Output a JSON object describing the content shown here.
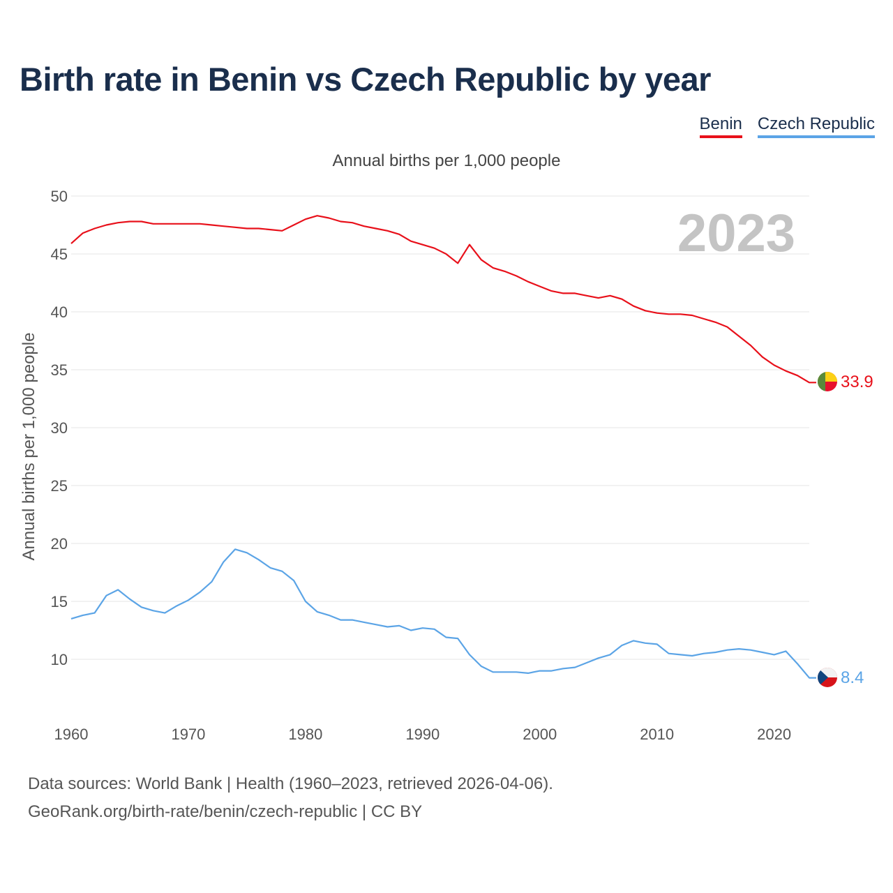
{
  "title": "Birth rate in Benin vs Czech Republic by year",
  "legend": [
    {
      "label": "Benin",
      "color": "#e8101a"
    },
    {
      "label": "Czech Republic",
      "color": "#5ba4e6"
    }
  ],
  "subtitle": "Annual births per 1,000 people",
  "year_watermark": "2023",
  "footer": {
    "line1": "Data sources: World Bank | Health (1960–2023, retrieved 2026-04-06).",
    "line2": "GeoRank.org/birth-rate/benin/czech-republic | CC BY"
  },
  "chart_data": {
    "type": "line",
    "title": "Birth rate in Benin vs Czech Republic by year",
    "ylabel": "Annual births per 1,000 people",
    "xlabel": "",
    "xlim": [
      1960,
      2023
    ],
    "ylim": [
      7,
      50
    ],
    "yticks": [
      10,
      15,
      20,
      25,
      30,
      35,
      40,
      45,
      50
    ],
    "xticks": [
      1960,
      1970,
      1980,
      1990,
      2000,
      2010,
      2020
    ],
    "grid": true,
    "legend_position": "top-right",
    "series": [
      {
        "name": "Benin",
        "color": "#e8101a",
        "end_label": "33.9",
        "x": [
          1960,
          1961,
          1962,
          1963,
          1964,
          1965,
          1966,
          1967,
          1968,
          1969,
          1970,
          1971,
          1972,
          1973,
          1974,
          1975,
          1976,
          1977,
          1978,
          1979,
          1980,
          1981,
          1982,
          1983,
          1984,
          1985,
          1986,
          1987,
          1988,
          1989,
          1990,
          1991,
          1992,
          1993,
          1994,
          1995,
          1996,
          1997,
          1998,
          1999,
          2000,
          2001,
          2002,
          2003,
          2004,
          2005,
          2006,
          2007,
          2008,
          2009,
          2010,
          2011,
          2012,
          2013,
          2014,
          2015,
          2016,
          2017,
          2018,
          2019,
          2020,
          2021,
          2022,
          2023
        ],
        "values": [
          45.9,
          46.8,
          47.2,
          47.5,
          47.7,
          47.8,
          47.8,
          47.6,
          47.6,
          47.6,
          47.6,
          47.6,
          47.5,
          47.4,
          47.3,
          47.2,
          47.2,
          47.1,
          47.0,
          47.5,
          48.0,
          48.3,
          48.1,
          47.8,
          47.7,
          47.4,
          47.2,
          47.0,
          46.7,
          46.1,
          45.8,
          45.5,
          45.0,
          44.2,
          45.8,
          44.5,
          43.8,
          43.5,
          43.1,
          42.6,
          42.2,
          41.8,
          41.6,
          41.6,
          41.4,
          41.2,
          41.4,
          41.1,
          40.5,
          40.1,
          39.9,
          39.8,
          39.8,
          39.7,
          39.4,
          39.1,
          38.7,
          37.9,
          37.1,
          36.1,
          35.4,
          34.9,
          34.5,
          33.9
        ]
      },
      {
        "name": "Czech Republic",
        "color": "#5ba4e6",
        "end_label": "8.4",
        "x": [
          1960,
          1961,
          1962,
          1963,
          1964,
          1965,
          1966,
          1967,
          1968,
          1969,
          1970,
          1971,
          1972,
          1973,
          1974,
          1975,
          1976,
          1977,
          1978,
          1979,
          1980,
          1981,
          1982,
          1983,
          1984,
          1985,
          1986,
          1987,
          1988,
          1989,
          1990,
          1991,
          1992,
          1993,
          1994,
          1995,
          1996,
          1997,
          1998,
          1999,
          2000,
          2001,
          2002,
          2003,
          2004,
          2005,
          2006,
          2007,
          2008,
          2009,
          2010,
          2011,
          2012,
          2013,
          2014,
          2015,
          2016,
          2017,
          2018,
          2019,
          2020,
          2021,
          2022,
          2023
        ],
        "values": [
          13.5,
          13.8,
          14.0,
          15.5,
          16.0,
          15.2,
          14.5,
          14.2,
          14.0,
          14.6,
          15.1,
          15.8,
          16.7,
          18.4,
          19.5,
          19.2,
          18.6,
          17.9,
          17.6,
          16.8,
          15.0,
          14.1,
          13.8,
          13.4,
          13.4,
          13.2,
          13.0,
          12.8,
          12.9,
          12.5,
          12.7,
          12.6,
          11.9,
          11.8,
          10.4,
          9.4,
          8.9,
          8.9,
          8.9,
          8.8,
          9.0,
          9.0,
          9.2,
          9.3,
          9.7,
          10.1,
          10.4,
          11.2,
          11.6,
          11.4,
          11.3,
          10.5,
          10.4,
          10.3,
          10.5,
          10.6,
          10.8,
          10.9,
          10.8,
          10.6,
          10.4,
          10.7,
          9.6,
          8.4
        ]
      }
    ]
  }
}
